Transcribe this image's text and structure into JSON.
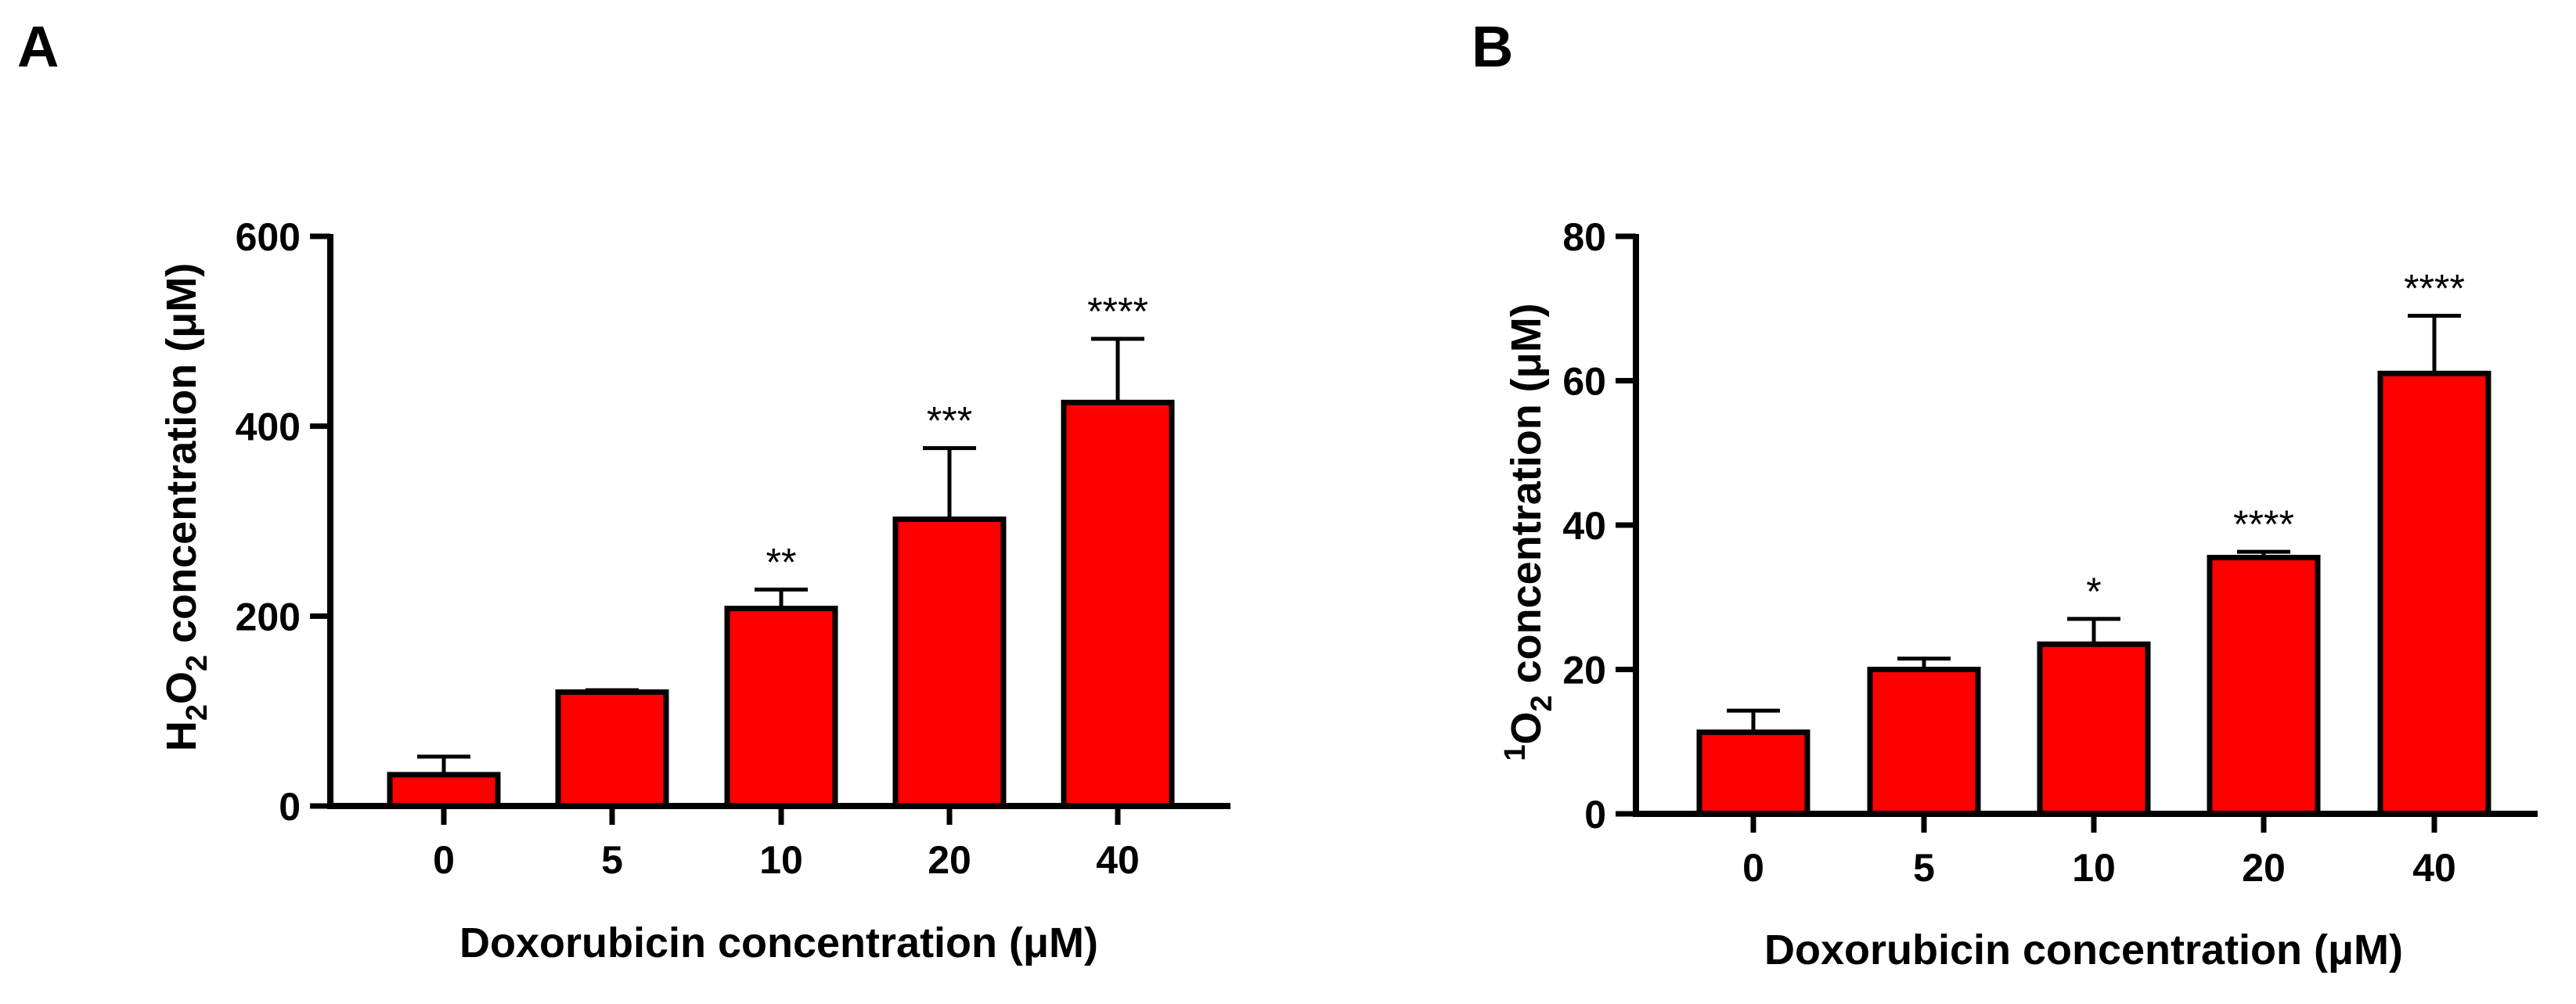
{
  "panels": [
    {
      "panel_label": "A",
      "ylabel": {
        "base": "H",
        "sub1": "2",
        "mid": "O",
        "sub2": "2",
        "rest": " concentration (μM)"
      },
      "xlabel": "Doxorubicin concentration (μM)"
    },
    {
      "panel_label": "B",
      "ylabel": {
        "sup": "1",
        "base": "O",
        "sub1": "2",
        "rest": " concentration (μM)"
      },
      "xlabel": "Doxorubicin concentration (μM)"
    }
  ],
  "chart_data": [
    {
      "type": "bar",
      "categories": [
        "0",
        "5",
        "10",
        "20",
        "40"
      ],
      "values": [
        33,
        120,
        208,
        302,
        425
      ],
      "errors": [
        19,
        2,
        20,
        75,
        67
      ],
      "significance": [
        "",
        "",
        "**",
        "***",
        "****"
      ],
      "ylim": [
        0,
        600
      ],
      "yticks": [
        0,
        200,
        400,
        600
      ],
      "xlabel": "Doxorubicin concentration (μM)",
      "ylabel": "H2O2 concentration (μM)",
      "bar_color": "#ff0000",
      "grid": false
    },
    {
      "type": "bar",
      "categories": [
        "0",
        "5",
        "10",
        "20",
        "40"
      ],
      "values": [
        11.3,
        20.0,
        23.5,
        35.5,
        61.0
      ],
      "errors": [
        3.0,
        1.5,
        3.5,
        0.8,
        8.0
      ],
      "significance": [
        "",
        "",
        "*",
        "****",
        "****"
      ],
      "ylim": [
        0,
        80
      ],
      "yticks": [
        0,
        20,
        40,
        60,
        80
      ],
      "xlabel": "Doxorubicin concentration (μM)",
      "ylabel": "1O2 concentration (μM)",
      "bar_color": "#ff0000",
      "grid": false
    }
  ]
}
